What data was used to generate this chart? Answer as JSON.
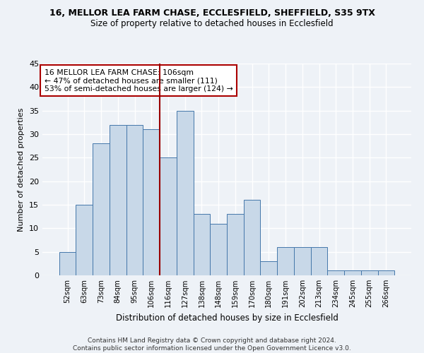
{
  "title": "16, MELLOR LEA FARM CHASE, ECCLESFIELD, SHEFFIELD, S35 9TX",
  "subtitle": "Size of property relative to detached houses in Ecclesfield",
  "xlabel": "Distribution of detached houses by size in Ecclesfield",
  "ylabel": "Number of detached properties",
  "bar_labels": [
    "52sqm",
    "63sqm",
    "73sqm",
    "84sqm",
    "95sqm",
    "106sqm",
    "116sqm",
    "127sqm",
    "138sqm",
    "148sqm",
    "159sqm",
    "170sqm",
    "180sqm",
    "191sqm",
    "202sqm",
    "213sqm",
    "234sqm",
    "245sqm",
    "255sqm",
    "266sqm"
  ],
  "bar_values": [
    5,
    15,
    28,
    32,
    32,
    31,
    25,
    35,
    13,
    11,
    13,
    16,
    3,
    6,
    6,
    6,
    1,
    1,
    1,
    1
  ],
  "bar_color": "#c8d8e8",
  "bar_edge_color": "#4477aa",
  "annotation_lines": [
    "16 MELLOR LEA FARM CHASE: 106sqm",
    "← 47% of detached houses are smaller (111)",
    "53% of semi-detached houses are larger (124) →"
  ],
  "ylim": [
    0,
    45
  ],
  "yticks": [
    0,
    5,
    10,
    15,
    20,
    25,
    30,
    35,
    40,
    45
  ],
  "footer_line1": "Contains HM Land Registry data © Crown copyright and database right 2024.",
  "footer_line2": "Contains public sector information licensed under the Open Government Licence v3.0.",
  "background_color": "#eef2f7",
  "grid_color": "#ffffff"
}
